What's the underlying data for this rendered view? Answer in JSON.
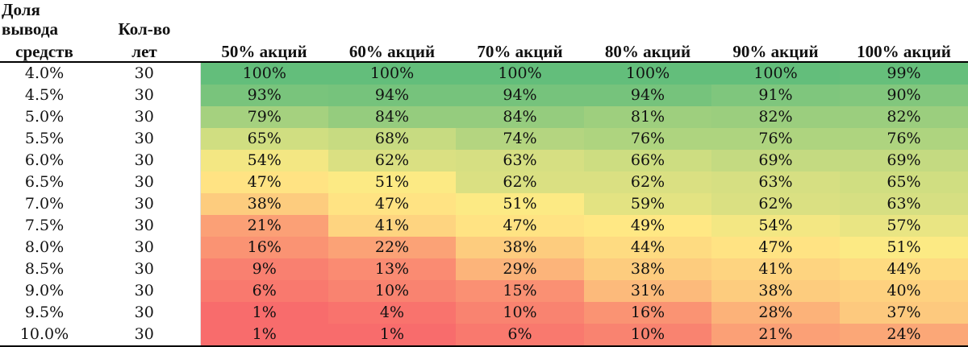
{
  "chart_data": {
    "type": "heatmap",
    "title": "",
    "header_rate_line1": "Доля вывода",
    "header_rate_line2": "средств",
    "header_years_line1": "Кол-во",
    "header_years_line2": "лет",
    "columns": [
      "50% акций",
      "60% акций",
      "70% акций",
      "80% акций",
      "90% акций",
      "100% акций"
    ],
    "rows": [
      {
        "rate": "4.0%",
        "years": "30",
        "values": [
          100,
          100,
          100,
          100,
          100,
          99
        ]
      },
      {
        "rate": "4.5%",
        "years": "30",
        "values": [
          93,
          94,
          94,
          94,
          91,
          90
        ]
      },
      {
        "rate": "5.0%",
        "years": "30",
        "values": [
          79,
          84,
          84,
          81,
          82,
          82
        ]
      },
      {
        "rate": "5.5%",
        "years": "30",
        "values": [
          65,
          68,
          74,
          76,
          76,
          76
        ]
      },
      {
        "rate": "6.0%",
        "years": "30",
        "values": [
          54,
          62,
          63,
          66,
          69,
          69
        ]
      },
      {
        "rate": "6.5%",
        "years": "30",
        "values": [
          47,
          51,
          62,
          62,
          63,
          65
        ]
      },
      {
        "rate": "7.0%",
        "years": "30",
        "values": [
          38,
          47,
          51,
          59,
          62,
          63
        ]
      },
      {
        "rate": "7.5%",
        "years": "30",
        "values": [
          21,
          41,
          47,
          49,
          54,
          57
        ]
      },
      {
        "rate": "8.0%",
        "years": "30",
        "values": [
          16,
          22,
          38,
          44,
          47,
          51
        ]
      },
      {
        "rate": "8.5%",
        "years": "30",
        "values": [
          9,
          13,
          29,
          38,
          41,
          44
        ]
      },
      {
        "rate": "9.0%",
        "years": "30",
        "values": [
          6,
          10,
          15,
          31,
          38,
          40
        ]
      },
      {
        "rate": "9.5%",
        "years": "30",
        "values": [
          1,
          4,
          10,
          16,
          28,
          37
        ]
      },
      {
        "rate": "10.0%",
        "years": "30",
        "values": [
          1,
          1,
          6,
          10,
          21,
          24
        ]
      }
    ],
    "value_suffix": "%",
    "value_range": [
      0,
      100
    ],
    "color_scale": {
      "low": "#f8696b",
      "mid": "#ffeb84",
      "high": "#63be7b"
    }
  }
}
